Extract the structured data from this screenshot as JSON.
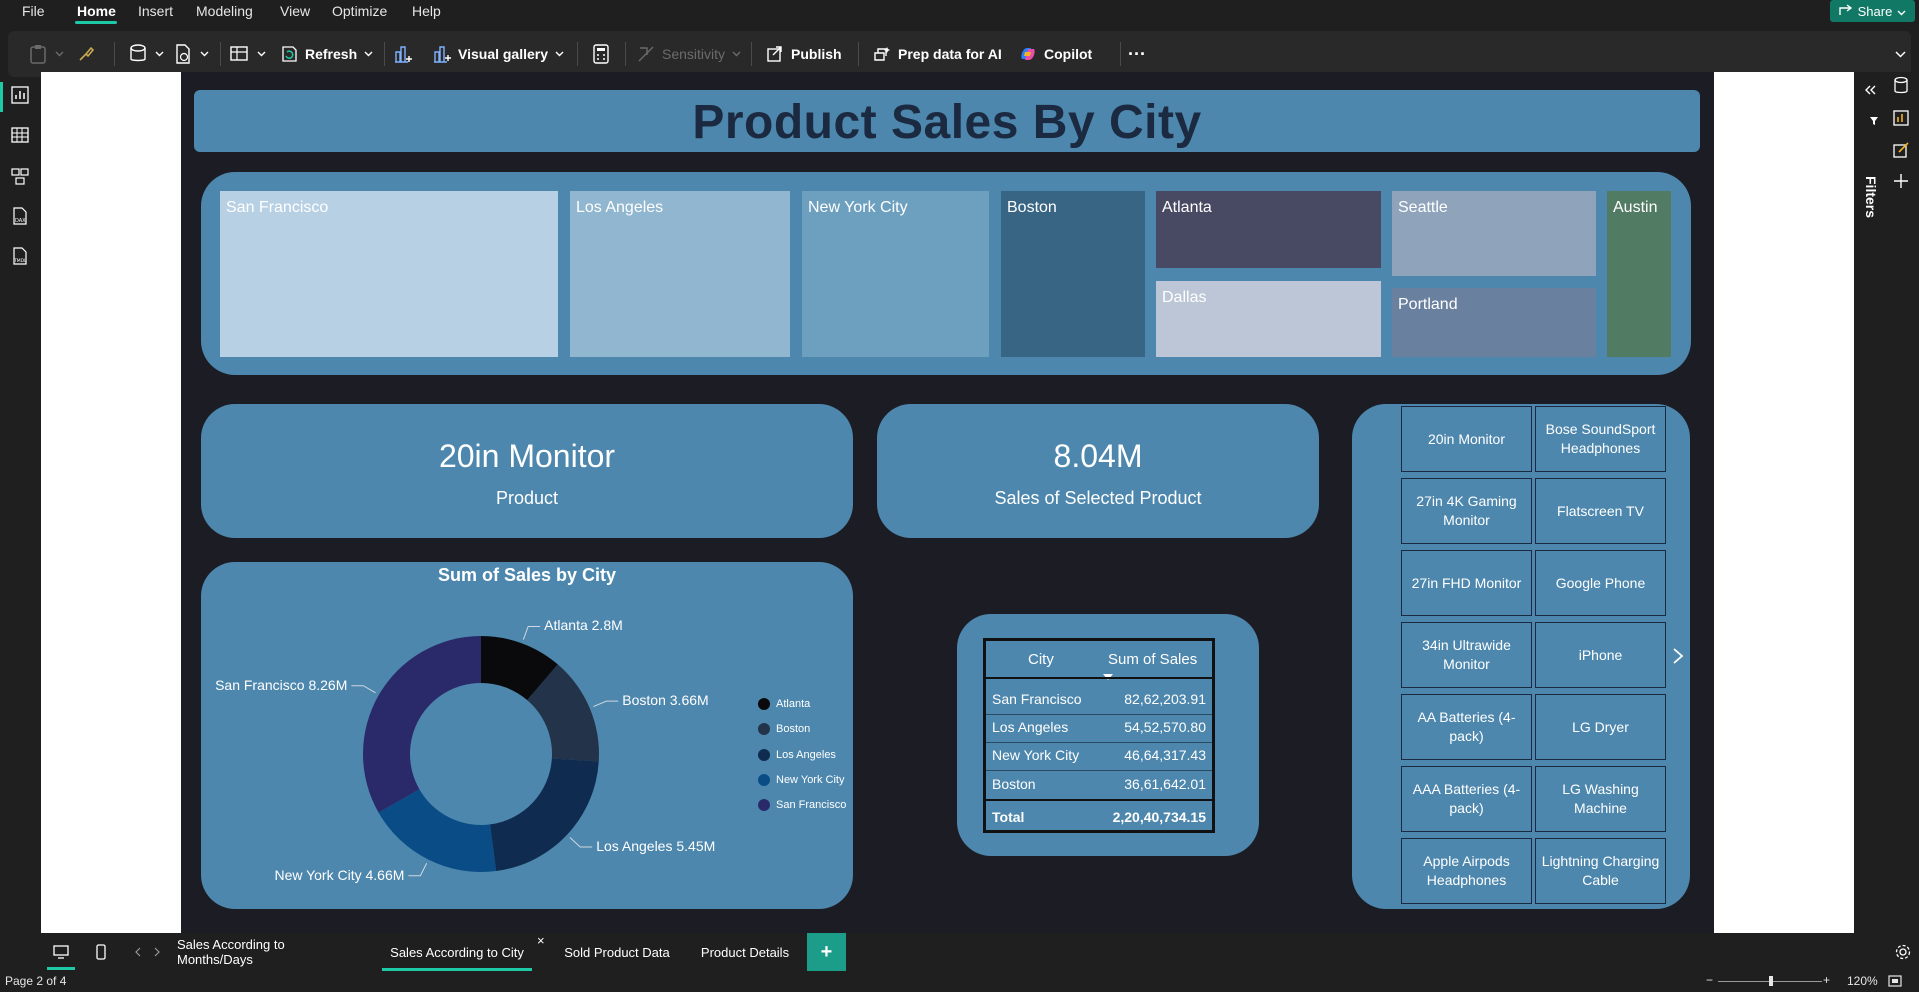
{
  "menu": {
    "items": [
      {
        "label": "File"
      },
      {
        "label": "Home"
      },
      {
        "label": "Insert"
      },
      {
        "label": "Modeling"
      },
      {
        "label": "View"
      },
      {
        "label": "Optimize"
      },
      {
        "label": "Help"
      }
    ],
    "share_label": "Share"
  },
  "ribbon": {
    "refresh_label": "Refresh",
    "visual_gallery_label": "Visual gallery",
    "sensitivity_label": "Sensitivity",
    "publish_label": "Publish",
    "prep_data_label": "Prep data for AI",
    "copilot_label": "Copilot",
    "more_label": "···"
  },
  "report": {
    "title": "Product Sales By City",
    "treemap": {
      "tiles": [
        {
          "label": "San Francisco",
          "color": "#b8d0e3"
        },
        {
          "label": "Los Angeles",
          "color": "#91b6cf"
        },
        {
          "label": "New York City",
          "color": "#6d9fbf"
        },
        {
          "label": "Boston",
          "color": "#386584"
        },
        {
          "label": "Atlanta",
          "color": "#484963"
        },
        {
          "label": "Dallas",
          "color": "#bcc6d6"
        },
        {
          "label": "Seattle",
          "color": "#8fa3bb"
        },
        {
          "label": "Portland",
          "color": "#6a809f"
        },
        {
          "label": "Austin",
          "color": "#527b63"
        }
      ]
    },
    "product_card": {
      "value": "20in Monitor",
      "label": "Product"
    },
    "sales_card": {
      "value": "8.04M",
      "label": "Sales of Selected Product"
    },
    "slicer": {
      "items": [
        "20in Monitor",
        "Bose SoundSport Headphones",
        "27in 4K Gaming Monitor",
        "Flatscreen TV",
        "27in FHD Monitor",
        "Google Phone",
        "34in Ultrawide Monitor",
        "iPhone",
        "AA Batteries (4-pack)",
        "LG Dryer",
        "AAA Batteries (4-pack)",
        "LG Washing Machine",
        "Apple Airpods Headphones",
        "Lightning Charging Cable"
      ]
    },
    "table": {
      "headers": [
        "City",
        "Sum of Sales"
      ],
      "rows": [
        [
          "San Francisco",
          "82,62,203.91"
        ],
        [
          "Los Angeles",
          "54,52,570.80"
        ],
        [
          "New York City",
          "46,64,317.43"
        ],
        [
          "Boston",
          "36,61,642.01"
        ]
      ],
      "total": [
        "Total",
        "2,20,40,734.15"
      ]
    }
  },
  "chart_data": {
    "type": "pie",
    "title": "Sum of Sales by City",
    "donut": true,
    "categories": [
      "Atlanta",
      "Boston",
      "Los Angeles",
      "New York City",
      "San Francisco"
    ],
    "values": [
      2.8,
      3.66,
      5.45,
      4.66,
      8.26
    ],
    "data_labels": [
      "Atlanta 2.8M",
      "Boston 3.66M",
      "Los Angeles 5.45M",
      "New York City 4.66M",
      "San Francisco 8.26M"
    ],
    "colors": [
      "#0a0a0c",
      "#22334a",
      "#0f2b4f",
      "#0a4d86",
      "#2a2a6b"
    ],
    "legend": {
      "position": "right",
      "labels": [
        "Atlanta",
        "Boston",
        "Los Angeles",
        "New York City",
        "San Francisco"
      ]
    }
  },
  "pages": {
    "tabs": [
      {
        "label": "Sales According to Months/Days"
      },
      {
        "label": "Sales According to City"
      },
      {
        "label": "Sold Product Data"
      },
      {
        "label": "Product Details"
      }
    ],
    "add_label": "+",
    "close_label": "×"
  },
  "rightpane": {
    "filters_label": "Filters"
  },
  "status": {
    "page_indicator": "Page 2 of 4",
    "zoom": "120%",
    "zoom_minus": "−",
    "zoom_plus": "+"
  }
}
